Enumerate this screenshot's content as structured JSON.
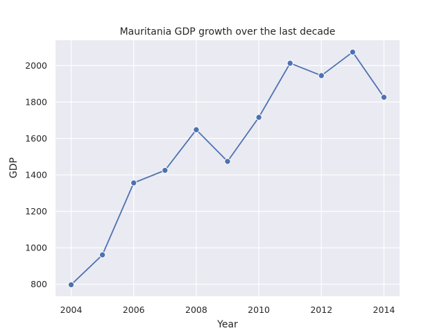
{
  "chart_data": {
    "type": "line",
    "title": "Mauritania GDP growth over the last decade",
    "xlabel": "Year",
    "ylabel": "GDP",
    "x": [
      2004,
      2005,
      2006,
      2007,
      2008,
      2009,
      2010,
      2011,
      2012,
      2013,
      2014
    ],
    "series": [
      {
        "values": [
          797,
          961,
          1356,
          1425,
          1648,
          1474,
          1716,
          2013,
          1945,
          2074,
          1826
        ]
      }
    ],
    "xlim": [
      2003.5,
      2014.5
    ],
    "ylim": [
      734,
      2139
    ],
    "xticks": [
      "2004",
      "2006",
      "2008",
      "2010",
      "2012",
      "2014"
    ],
    "yticks": [
      "800",
      "1000",
      "1200",
      "1400",
      "1600",
      "1800",
      "2000"
    ],
    "grid": true,
    "legend": "none",
    "colors": {
      "plot_background": "#eaeaf2",
      "grid": "#ffffff",
      "line": "#4c72b0",
      "text": "#262626"
    }
  }
}
